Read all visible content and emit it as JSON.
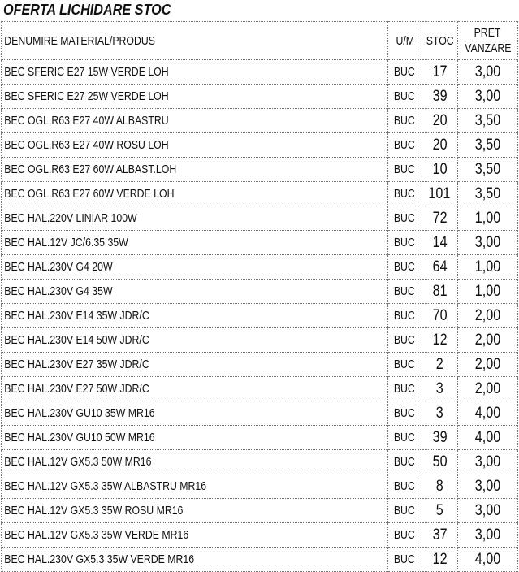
{
  "title": "OFERTA LICHIDARE STOC",
  "headers": {
    "name": "DENUMIRE MATERIAL/PRODUS",
    "um": "U/M",
    "stoc": "STOC",
    "pret_line1": "PRET",
    "pret_line2": "VANZARE"
  },
  "rows": [
    {
      "name": "BEC SFERIC E27 15W VERDE LOH",
      "um": "BUC",
      "stoc": "17",
      "pret": "3,00"
    },
    {
      "name": "BEC SFERIC E27 25W VERDE LOH",
      "um": "BUC",
      "stoc": "39",
      "pret": "3,00"
    },
    {
      "name": "BEC OGL.R63 E27 40W ALBASTRU",
      "um": "BUC",
      "stoc": "20",
      "pret": "3,50"
    },
    {
      "name": "BEC OGL.R63 E27 40W ROSU LOH",
      "um": "BUC",
      "stoc": "20",
      "pret": "3,50"
    },
    {
      "name": "BEC OGL.R63 E27 60W ALBAST.LOH",
      "um": "BUC",
      "stoc": "10",
      "pret": "3,50"
    },
    {
      "name": "BEC OGL.R63 E27 60W VERDE LOH",
      "um": "BUC",
      "stoc": "101",
      "pret": "3,50"
    },
    {
      "name": "BEC HAL.220V LINIAR 100W",
      "um": "BUC",
      "stoc": "72",
      "pret": "1,00"
    },
    {
      "name": "BEC HAL.12V JC/6.35 35W",
      "um": "BUC",
      "stoc": "14",
      "pret": "3,00"
    },
    {
      "name": "BEC HAL.230V G4 20W",
      "um": "BUC",
      "stoc": "64",
      "pret": "1,00"
    },
    {
      "name": "BEC HAL.230V G4 35W",
      "um": "BUC",
      "stoc": "81",
      "pret": "1,00"
    },
    {
      "name": "BEC HAL.230V E14 35W JDR/C",
      "um": "BUC",
      "stoc": "70",
      "pret": "2,00"
    },
    {
      "name": "BEC HAL.230V E14 50W JDR/C",
      "um": "BUC",
      "stoc": "12",
      "pret": "2,00"
    },
    {
      "name": "BEC HAL.230V E27 35W JDR/C",
      "um": "BUC",
      "stoc": "2",
      "pret": "2,00"
    },
    {
      "name": "BEC HAL.230V E27 50W JDR/C",
      "um": "BUC",
      "stoc": "3",
      "pret": "2,00"
    },
    {
      "name": "BEC HAL.230V GU10 35W MR16",
      "um": "BUC",
      "stoc": "3",
      "pret": "4,00"
    },
    {
      "name": "BEC HAL.230V GU10 50W MR16",
      "um": "BUC",
      "stoc": "39",
      "pret": "4,00"
    },
    {
      "name": "BEC HAL.12V GX5.3 50W MR16",
      "um": "BUC",
      "stoc": "50",
      "pret": "3,00"
    },
    {
      "name": "BEC HAL.12V GX5.3 35W ALBASTRU MR16",
      "um": "BUC",
      "stoc": "8",
      "pret": "3,00"
    },
    {
      "name": "BEC HAL.12V GX5.3 35W ROSU MR16",
      "um": "BUC",
      "stoc": "5",
      "pret": "3,00"
    },
    {
      "name": "BEC HAL.12V GX5.3 35W VERDE MR16",
      "um": "BUC",
      "stoc": "37",
      "pret": "3,00"
    },
    {
      "name": "BEC HAL.230V GX5.3 35W VERDE MR16",
      "um": "BUC",
      "stoc": "12",
      "pret": "4,00"
    }
  ]
}
